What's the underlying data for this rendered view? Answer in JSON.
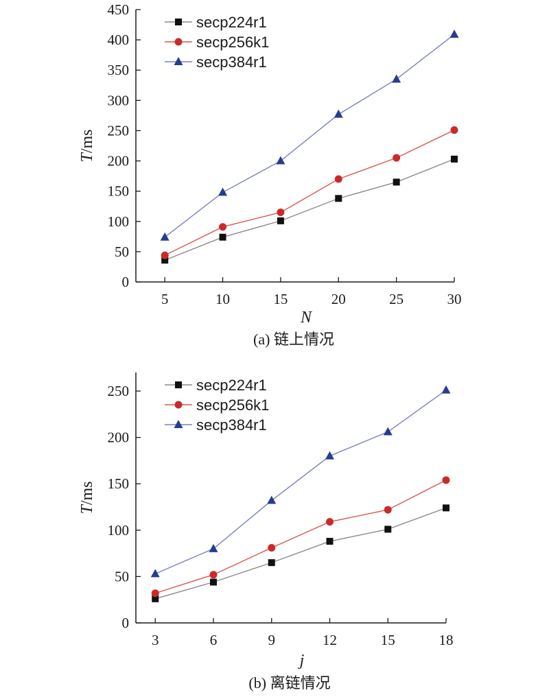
{
  "chart_data": [
    {
      "type": "line",
      "caption": "(a) 链上情况",
      "xlabel": "N",
      "ylabel_var": "T",
      "ylabel_unit": "/ms",
      "x": [
        5,
        10,
        15,
        20,
        25,
        30
      ],
      "xlim": [
        2.5,
        30
      ],
      "ylim": [
        0,
        450
      ],
      "yticks": [
        0,
        50,
        100,
        150,
        200,
        250,
        300,
        350,
        400,
        450
      ],
      "legend_position": "top-left",
      "grid": false,
      "series": [
        {
          "name": "secp224r1",
          "marker": "square",
          "color": "#111111",
          "line_color": "#8a8a8a",
          "values": [
            36,
            74,
            101,
            138,
            165,
            203
          ]
        },
        {
          "name": "secp256k1",
          "marker": "circle",
          "color": "#cc2a2a",
          "line_color": "#d9574f",
          "values": [
            44,
            91,
            115,
            170,
            205,
            251
          ]
        },
        {
          "name": "secp384r1",
          "marker": "triangle",
          "color": "#283c8f",
          "line_color": "#7a7fc4",
          "values": [
            74,
            148,
            200,
            277,
            335,
            409
          ]
        }
      ]
    },
    {
      "type": "line",
      "caption": "(b) 离链情况",
      "xlabel": "j",
      "ylabel_var": "T",
      "ylabel_unit": "/ms",
      "x": [
        3,
        6,
        9,
        12,
        15,
        18
      ],
      "xlim": [
        2,
        18
      ],
      "ylim": [
        0,
        270
      ],
      "yticks": [
        0,
        50,
        100,
        150,
        200,
        250
      ],
      "legend_position": "top-left",
      "grid": false,
      "series": [
        {
          "name": "secp224r1",
          "marker": "square",
          "color": "#111111",
          "line_color": "#8a8a8a",
          "values": [
            26,
            44,
            65,
            88,
            101,
            124
          ]
        },
        {
          "name": "secp256k1",
          "marker": "circle",
          "color": "#cc2a2a",
          "line_color": "#d9574f",
          "values": [
            32,
            52,
            81,
            109,
            122,
            154
          ]
        },
        {
          "name": "secp384r1",
          "marker": "triangle",
          "color": "#283c8f",
          "line_color": "#7a7fc4",
          "values": [
            53,
            80,
            132,
            180,
            206,
            251
          ]
        }
      ]
    }
  ]
}
